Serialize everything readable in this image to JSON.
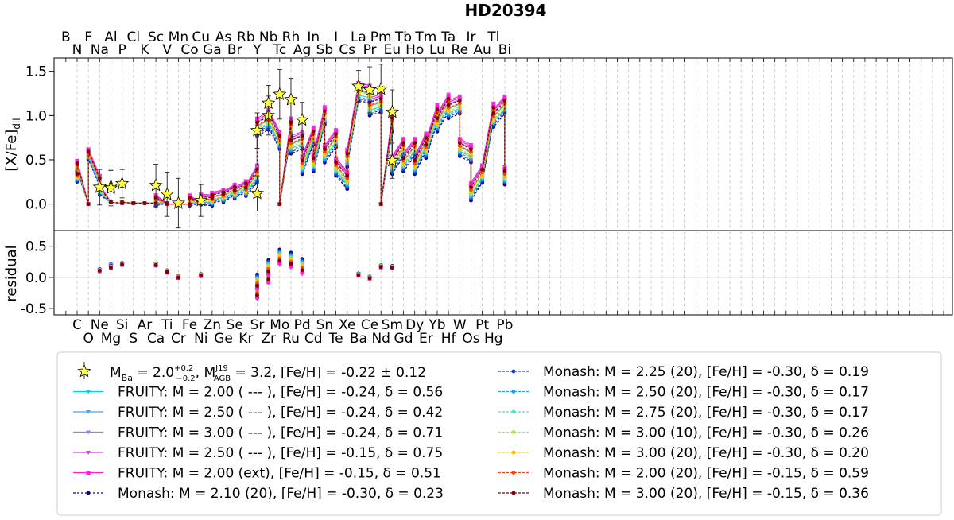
{
  "title": "HD20394",
  "chart_data": {
    "type": "line",
    "title": "HD20394",
    "top_panel": {
      "ylabel_main": "[X/Fe]",
      "ylabel_sub": "dil",
      "ylim": [
        -0.3,
        1.65
      ],
      "yticks": [
        "0.0",
        "0.5",
        "1.0",
        "1.5"
      ],
      "ytick_values": [
        0.0,
        0.5,
        1.0,
        1.5
      ]
    },
    "bottom_panel": {
      "ylabel": "residual",
      "ylim": [
        -0.6,
        0.75
      ],
      "yticks": [
        "-0.5",
        "0.0",
        "0.5"
      ],
      "ytick_values": [
        -0.5,
        0.0,
        0.5
      ]
    },
    "grid": "vertical dashed lines at each element",
    "elements_top_row1": [
      "B",
      "F",
      "Al",
      "Cl",
      "Sc",
      "Mn",
      "Cu",
      "As",
      "Rb",
      "Nb",
      "Rh",
      "In",
      "I",
      "La",
      "Pm",
      "Tb",
      "Tm",
      "Ta",
      "Ir",
      "Tl"
    ],
    "elements_top_row2": [
      "N",
      "Na",
      "P",
      "K",
      "V",
      "Co",
      "Ga",
      "Br",
      "Y",
      "Tc",
      "Ag",
      "Sb",
      "Cs",
      "Pr",
      "Eu",
      "Ho",
      "Lu",
      "Re",
      "Au",
      "Bi"
    ],
    "elements_bottom_row1": [
      "C",
      "Ne",
      "Si",
      "Ar",
      "Ti",
      "Fe",
      "Zn",
      "Se",
      "Sr",
      "Mo",
      "Pd",
      "Sn",
      "Xe",
      "Ce",
      "Sm",
      "Dy",
      "Yb",
      "W",
      "Pt",
      "Pb"
    ],
    "elements_bottom_row2": [
      "O",
      "Mg",
      "S",
      "Ca",
      "Cr",
      "Ni",
      "Ge",
      "Kr",
      "Zr",
      "Ru",
      "Cd",
      "Te",
      "Ba",
      "Nd",
      "Gd",
      "Er",
      "Hf",
      "Os",
      "Hg"
    ],
    "observations": [
      {
        "el": "Na",
        "y": 0.19,
        "err": 0.2
      },
      {
        "el": "Mg",
        "y": 0.2,
        "err": 0.18
      },
      {
        "el": "Al",
        "y": 0.18,
        "err": 0.2
      },
      {
        "el": "Si",
        "y": 0.23,
        "err": 0.16
      },
      {
        "el": "Ca",
        "y": 0.21,
        "err": 0.24
      },
      {
        "el": "Ti",
        "y": 0.11,
        "err": 0.25
      },
      {
        "el": "Cr",
        "y": 0.01,
        "err": 0.28
      },
      {
        "el": "Ni",
        "y": 0.04,
        "err": 0.18
      },
      {
        "el": "Sr",
        "y": 0.12,
        "err": 0.2
      },
      {
        "el": "Y",
        "y": 0.83,
        "err": 0.2
      },
      {
        "el": "Zr",
        "y": 1.0,
        "err": 0.22
      },
      {
        "el": "Nb",
        "y": 1.14,
        "err": 0.2
      },
      {
        "el": "Mo",
        "y": 1.24,
        "err": 0.28
      },
      {
        "el": "Ru",
        "y": 1.18,
        "err": 0.24
      },
      {
        "el": "Pd",
        "y": 0.95,
        "err": 0.2
      },
      {
        "el": "La",
        "y": 1.33,
        "err": 0.18
      },
      {
        "el": "Ce",
        "y": 1.29,
        "err": 0.26
      },
      {
        "el": "Nd",
        "y": 1.3,
        "err": 0.28
      },
      {
        "el": "Sm",
        "y": 1.04,
        "err": 0.25
      },
      {
        "el": "Eu",
        "y": 0.49,
        "err": 0.2
      }
    ],
    "base_model": [
      {
        "el": "C",
        "y": 0.3
      },
      {
        "el": "N",
        "y": 0.42
      },
      {
        "el": "O",
        "y": 0.0
      },
      {
        "el": "F",
        "y": 0.55
      },
      {
        "el": "Ne",
        "y": 0.25
      },
      {
        "el": "Na",
        "y": 0.15
      },
      {
        "el": "Mg",
        "y": 0.02
      },
      {
        "el": "Al",
        "y": 0.02
      },
      {
        "el": "Si",
        "y": 0.01
      },
      {
        "el": "P",
        "y": 0.02
      },
      {
        "el": "S",
        "y": 0.01
      },
      {
        "el": "Cl",
        "y": 0.01
      },
      {
        "el": "Ar",
        "y": 0.01
      },
      {
        "el": "K",
        "y": 0.01
      },
      {
        "el": "Ca",
        "y": 0.01
      },
      {
        "el": "Sc",
        "y": 0.03
      },
      {
        "el": "Ti",
        "y": 0.01
      },
      {
        "el": "V",
        "y": 0.0
      },
      {
        "el": "Cr",
        "y": 0.0
      },
      {
        "el": "Mn",
        "y": 0.0
      },
      {
        "el": "Fe",
        "y": 0.0
      },
      {
        "el": "Co",
        "y": 0.03
      },
      {
        "el": "Ni",
        "y": 0.01
      },
      {
        "el": "Cu",
        "y": 0.04
      },
      {
        "el": "Zn",
        "y": 0.03
      },
      {
        "el": "Ga",
        "y": 0.06
      },
      {
        "el": "Ge",
        "y": 0.09
      },
      {
        "el": "As",
        "y": 0.07
      },
      {
        "el": "Se",
        "y": 0.15
      },
      {
        "el": "Br",
        "y": 0.11
      },
      {
        "el": "Kr",
        "y": 0.19
      },
      {
        "el": "Rb",
        "y": 0.14
      },
      {
        "el": "Sr",
        "y": 0.32
      },
      {
        "el": "Y",
        "y": 0.85
      },
      {
        "el": "Zr",
        "y": 0.92
      },
      {
        "el": "Nb",
        "y": 0.95
      },
      {
        "el": "Mo",
        "y": 0.7
      },
      {
        "el": "Tc",
        "y": 0.0
      },
      {
        "el": "Ru",
        "y": 0.85
      },
      {
        "el": "Rh",
        "y": 0.65
      },
      {
        "el": "Pd",
        "y": 0.7
      },
      {
        "el": "Ag",
        "y": 0.42
      },
      {
        "el": "Cd",
        "y": 0.75
      },
      {
        "el": "In",
        "y": 0.45
      },
      {
        "el": "Sn",
        "y": 0.98
      },
      {
        "el": "Sb",
        "y": 0.55
      },
      {
        "el": "Te",
        "y": 0.72
      },
      {
        "el": "I",
        "y": 0.4
      },
      {
        "el": "Xe",
        "y": 0.25
      },
      {
        "el": "Cs",
        "y": 0.5
      },
      {
        "el": "Ba",
        "y": 1.25
      },
      {
        "el": "La",
        "y": 1.25
      },
      {
        "el": "Ce",
        "y": 1.22
      },
      {
        "el": "Pr",
        "y": 1.08
      },
      {
        "el": "Nd",
        "y": 1.12
      },
      {
        "el": "Pm",
        "y": 0.0
      },
      {
        "el": "Sm",
        "y": 0.9
      },
      {
        "el": "Eu",
        "y": 0.42
      },
      {
        "el": "Gd",
        "y": 0.62
      },
      {
        "el": "Tb",
        "y": 0.45
      },
      {
        "el": "Dy",
        "y": 0.62
      },
      {
        "el": "Ho",
        "y": 0.42
      },
      {
        "el": "Er",
        "y": 0.68
      },
      {
        "el": "Tm",
        "y": 0.6
      },
      {
        "el": "Yb",
        "y": 1.0
      },
      {
        "el": "Lu",
        "y": 0.9
      },
      {
        "el": "Hf",
        "y": 1.12
      },
      {
        "el": "Ta",
        "y": 1.05
      },
      {
        "el": "W",
        "y": 1.1
      },
      {
        "el": "Re",
        "y": 0.62
      },
      {
        "el": "Os",
        "y": 0.55
      },
      {
        "el": "Ir",
        "y": 0.12
      },
      {
        "el": "Pt",
        "y": 0.32
      },
      {
        "el": "Au",
        "y": 0.32
      },
      {
        "el": "Hg",
        "y": 1.02
      },
      {
        "el": "Tl",
        "y": 0.95
      },
      {
        "el": "Pb",
        "y": 1.1
      },
      {
        "el": "Bi",
        "y": 0.3
      }
    ],
    "residuals": [
      {
        "el": "Na",
        "y": 0.12
      },
      {
        "el": "Mg",
        "y": 0.2
      },
      {
        "el": "Al",
        "y": 0.17
      },
      {
        "el": "Si",
        "y": 0.22
      },
      {
        "el": "Ca",
        "y": 0.21
      },
      {
        "el": "Ti",
        "y": 0.1
      },
      {
        "el": "Cr",
        "y": 0.01
      },
      {
        "el": "Ni",
        "y": 0.04
      },
      {
        "el": "Sr",
        "y": -0.2
      },
      {
        "el": "Y",
        "y": -0.05
      },
      {
        "el": "Zr",
        "y": 0.05
      },
      {
        "el": "Nb",
        "y": 0.18
      },
      {
        "el": "Mo",
        "y": 0.35
      },
      {
        "el": "Ru",
        "y": 0.3
      },
      {
        "el": "Pd",
        "y": 0.2
      },
      {
        "el": "La",
        "y": 0.05
      },
      {
        "el": "Ce",
        "y": 0.0
      },
      {
        "el": "Nd",
        "y": 0.18
      },
      {
        "el": "Sm",
        "y": 0.17
      },
      {
        "el": "Eu",
        "y": 0.17
      }
    ],
    "series": [
      {
        "name": "FRUITY:   M = 2.00 ( --- ),  [Fe/H] = -0.24,  δ = 0.56",
        "color": "#00d0f0",
        "marker": "triangle",
        "dash": false,
        "offset": -0.02
      },
      {
        "name": "FRUITY:   M = 2.50 ( --- ),  [Fe/H] = -0.24,  δ = 0.42",
        "color": "#4aa8e8",
        "marker": "triangle",
        "dash": false,
        "offset": 0.03
      },
      {
        "name": "FRUITY:   M = 3.00 ( --- ),  [Fe/H] = -0.24,  δ = 0.71",
        "color": "#9a7cf0",
        "marker": "triangle",
        "dash": false,
        "offset": 0.08
      },
      {
        "name": "FRUITY:   M = 2.50 ( --- ),  [Fe/H] = -0.15,  δ = 0.75",
        "color": "#cc44dd",
        "marker": "triangle",
        "dash": false,
        "offset": 0.12
      },
      {
        "name": "FRUITY:   M = 2.00 (ext),  [Fe/H] = -0.15,  δ = 0.51",
        "color": "#ff22cc",
        "marker": "square",
        "dash": false,
        "offset": 0.1
      },
      {
        "name": "Monash:  M = 2.10 (20),    [Fe/H] = -0.30,  δ = 0.23",
        "color": "#0a0a80",
        "marker": "circle",
        "dash": true,
        "offset": -0.08
      },
      {
        "name": "Monash:  M = 2.25 (20),    [Fe/H] = -0.30,  δ = 0.19",
        "color": "#1a38e0",
        "marker": "circle",
        "dash": true,
        "offset": -0.06
      },
      {
        "name": "Monash:  M = 2.50 (20),    [Fe/H] = -0.30,  δ = 0.17",
        "color": "#20a0e0",
        "marker": "circle",
        "dash": true,
        "offset": -0.04
      },
      {
        "name": "Monash:  M = 2.75 (20),    [Fe/H] = -0.30,  δ = 0.17",
        "color": "#50e0c0",
        "marker": "circle",
        "dash": true,
        "offset": -0.02
      },
      {
        "name": "Monash:  M = 3.00 (10),    [Fe/H] = -0.30,  δ = 0.26",
        "color": "#a0f040",
        "marker": "circle",
        "dash": true,
        "offset": 0.02
      },
      {
        "name": "Monash:  M = 3.00 (20),    [Fe/H] = -0.30,  δ = 0.20",
        "color": "#ffc000",
        "marker": "circle",
        "dash": true,
        "offset": 0.0
      },
      {
        "name": "Monash:  M = 2.00 (20),    [Fe/H] = -0.15,  δ = 0.59",
        "color": "#ff4010",
        "marker": "circle",
        "dash": true,
        "offset": 0.04
      },
      {
        "name": "Monash:  M = 3.00 (20),    [Fe/H] = -0.15,  δ = 0.36",
        "color": "#800000",
        "marker": "circle",
        "dash": true,
        "offset": 0.07
      }
    ],
    "legend": {
      "position": "bottom",
      "obs_label": {
        "p1": "M",
        "p1sub": "Ba",
        "p2": " = 2.0",
        "sup": "+0.2",
        "sub": "−0.2",
        "p3": ", M",
        "p3sup": "J19",
        "p3sub": "AGB",
        "p4": " = 3.2, [Fe/H] = -0.22 ± 0.12"
      }
    }
  }
}
